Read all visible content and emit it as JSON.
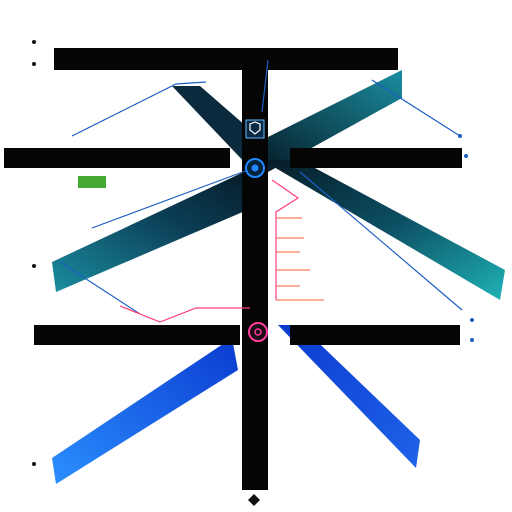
{
  "diagram": {
    "top_caption": "",
    "header_label": "",
    "banners": [
      {
        "id": "banner-top",
        "text": ""
      },
      {
        "id": "banner-mid",
        "text": ""
      },
      {
        "id": "banner-low",
        "text": ""
      }
    ],
    "nodes": [
      {
        "id": "node-shield",
        "icon": "shield-icon",
        "color": "#0b2a44"
      },
      {
        "id": "node-ring-blue",
        "icon": "ring-icon",
        "color": "#1e88ff"
      },
      {
        "id": "node-ring-pink",
        "icon": "ring-icon",
        "color": "#ff3d9a"
      }
    ],
    "left_markers": [
      "",
      "",
      "",
      "",
      ""
    ],
    "right_labels": [
      "",
      "",
      "",
      "",
      "",
      "",
      ""
    ],
    "bottom_label": "",
    "colors": {
      "bar": "#050505",
      "teal_dark": "#063247",
      "teal_light": "#17a3b3",
      "blue_dark": "#0b4bd6",
      "blue_light": "#36a2ff",
      "link_blue": "#1e5fc4",
      "link_pink": "#ff3d7a",
      "tag_green": "#44aa33",
      "red_list": "#ff7a5a"
    }
  }
}
